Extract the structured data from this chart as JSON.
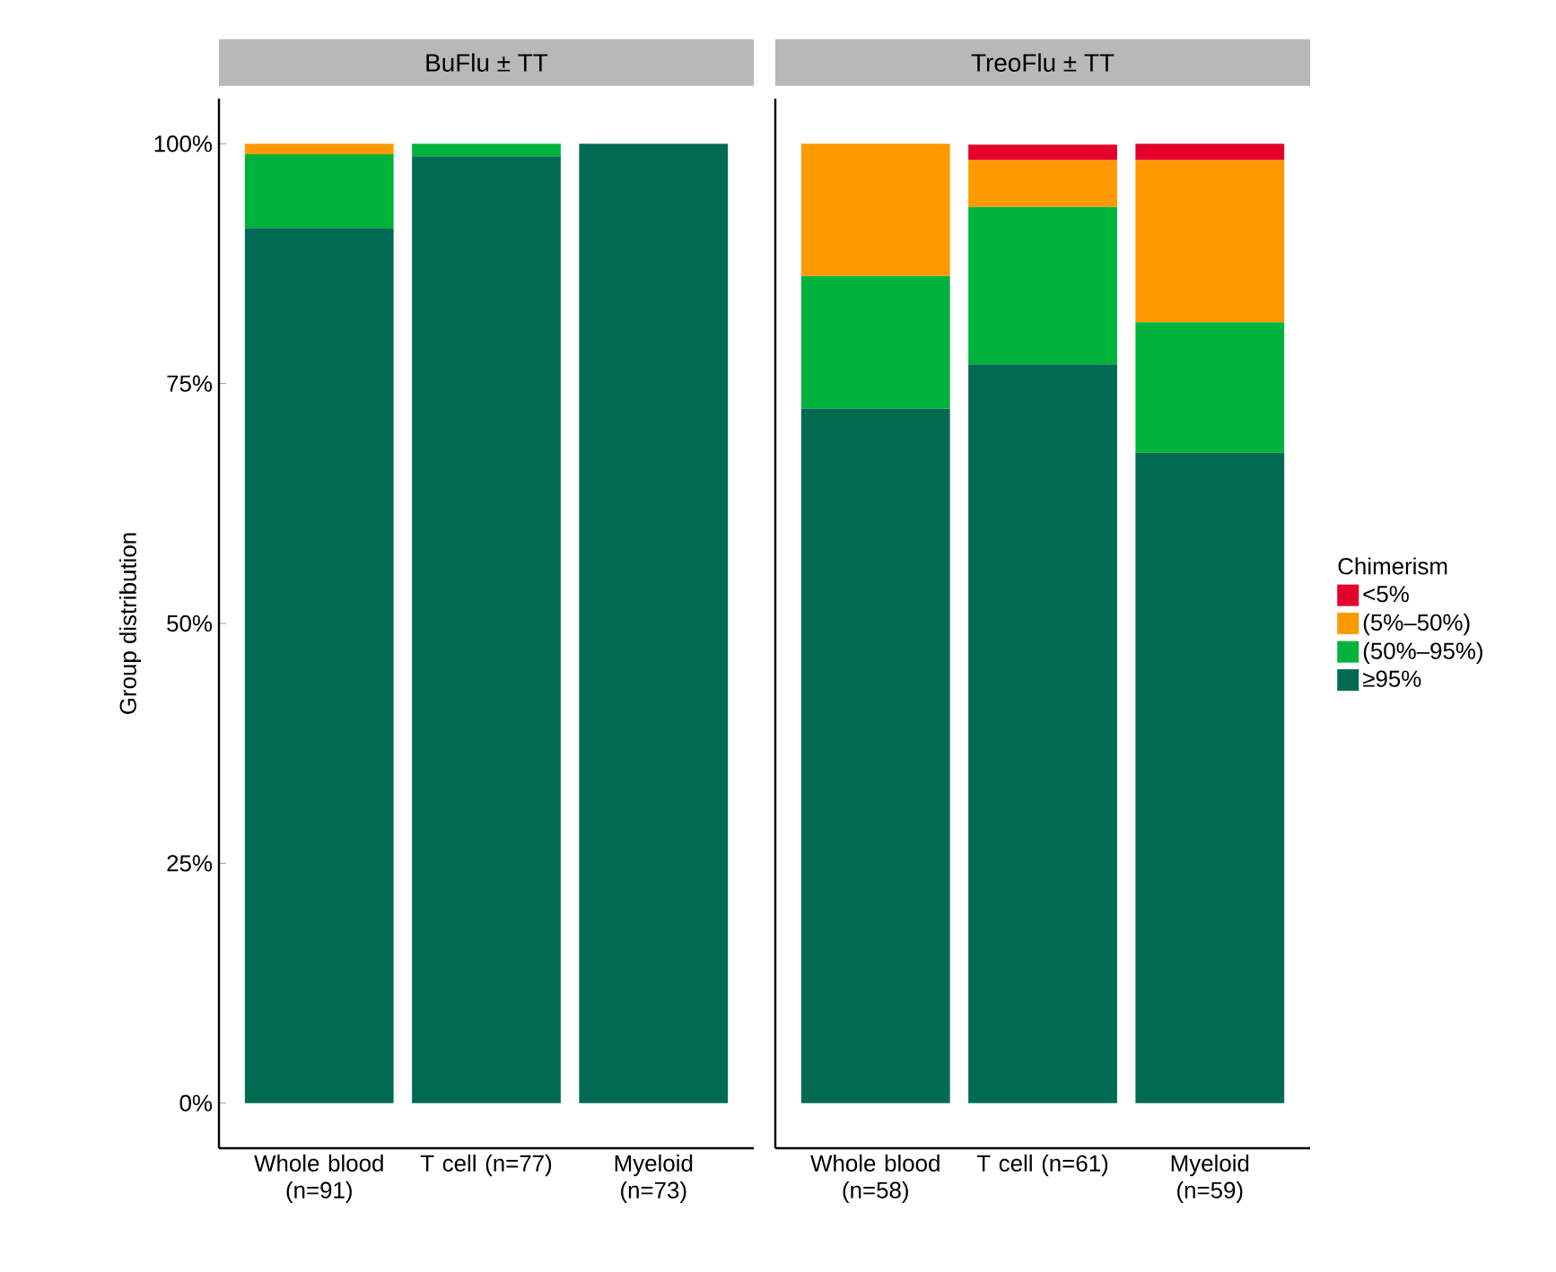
{
  "chart_data": [
    {
      "type": "bar",
      "stacked": true,
      "title": "BuFlu ± TT",
      "ylabel": "Group distribution",
      "categories": [
        "Whole blood (n=91)",
        "T cell (n=77)",
        "Myeloid (n=73)"
      ],
      "ylim": [
        -4.7,
        104.7
      ],
      "yticks": [
        {
          "value": 0,
          "label": "0%"
        },
        {
          "value": 25,
          "label": "25%"
        },
        {
          "value": 50,
          "label": "50%"
        },
        {
          "value": 75,
          "label": "75%"
        },
        {
          "value": 100,
          "label": "100%"
        }
      ],
      "series": [
        {
          "color": "#006a52",
          "values": [
            91.2,
            98.7,
            100
          ]
        },
        {
          "color": "#00b33c",
          "values": [
            7.7,
            1.3,
            0
          ]
        },
        {
          "color": "#ff9900",
          "values": [
            1.1,
            0,
            0
          ]
        },
        {
          "color": "#e4002b",
          "values": [
            0,
            0,
            0
          ]
        }
      ],
      "legend": false
    },
    {
      "type": "bar",
      "stacked": true,
      "title": "TreoFlu ± TT",
      "categories": [
        "Whole blood (n=58)",
        "T cell (n=61)",
        "Myeloid (n=59)"
      ],
      "ylim": [
        -4.7,
        104.7
      ],
      "legend_title": "Chimerism",
      "series": [
        {
          "name": "≥95%",
          "color": "#006a52",
          "values": [
            72.4,
            77.0,
            67.8
          ]
        },
        {
          "name": "(50%–95%)",
          "color": "#00b33c",
          "values": [
            13.8,
            16.4,
            13.6
          ]
        },
        {
          "name": "(5%–50%)",
          "color": "#ff9900",
          "values": [
            13.8,
            4.9,
            16.9
          ]
        },
        {
          "name": "<5%",
          "color": "#e4002b",
          "values": [
            0,
            1.6,
            1.7
          ]
        }
      ],
      "legend": "right"
    }
  ]
}
